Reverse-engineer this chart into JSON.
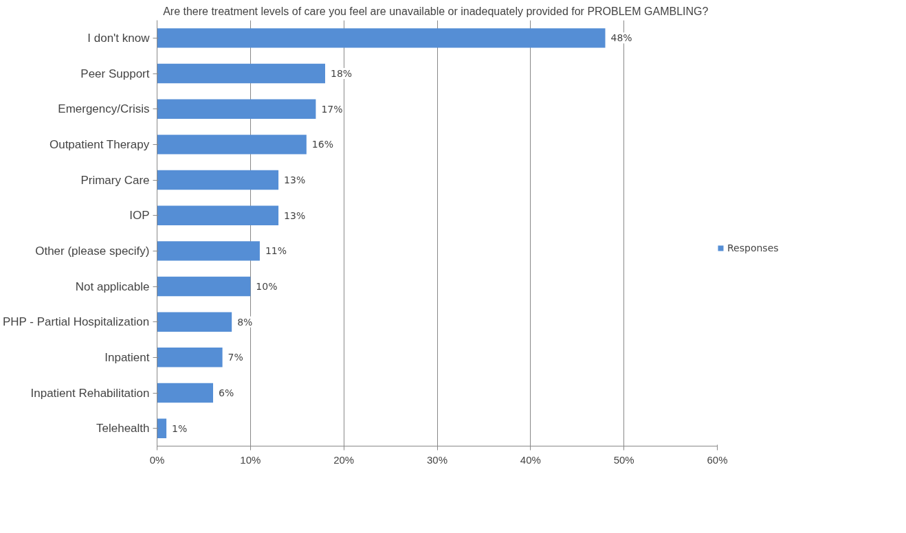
{
  "chart_data": {
    "type": "bar",
    "orientation": "horizontal",
    "title": "Are there treatment levels of care you feel are unavailable or inadequately provided  for PROBLEM GAMBLING?",
    "categories": [
      "I don't know",
      "Peer Support",
      "Emergency/Crisis",
      "Outpatient Therapy",
      "Primary Care",
      "IOP",
      "Other (please specify)",
      "Not applicable",
      "PHP - Partial Hospitalization",
      "Inpatient",
      "Inpatient Rehabilitation",
      "Telehealth"
    ],
    "series": [
      {
        "name": "Responses",
        "color": "#558ed5",
        "values": [
          48,
          18,
          17,
          16,
          13,
          13,
          11,
          10,
          8,
          7,
          6,
          1
        ],
        "value_labels": [
          "48%",
          "18%",
          "17%",
          "16%",
          "13%",
          "13%",
          "11%",
          "10%",
          "8%",
          "7%",
          "6%",
          "1%"
        ]
      }
    ],
    "xlim": [
      0,
      60
    ],
    "xticks": [
      {
        "value": 0,
        "label": "0%"
      },
      {
        "value": 10,
        "label": "10%"
      },
      {
        "value": 20,
        "label": "20%"
      },
      {
        "value": 30,
        "label": "30%"
      },
      {
        "value": 40,
        "label": "40%"
      },
      {
        "value": 50,
        "label": "50%"
      },
      {
        "value": 60,
        "label": "60%"
      }
    ],
    "grid": "x",
    "legend": "right"
  }
}
